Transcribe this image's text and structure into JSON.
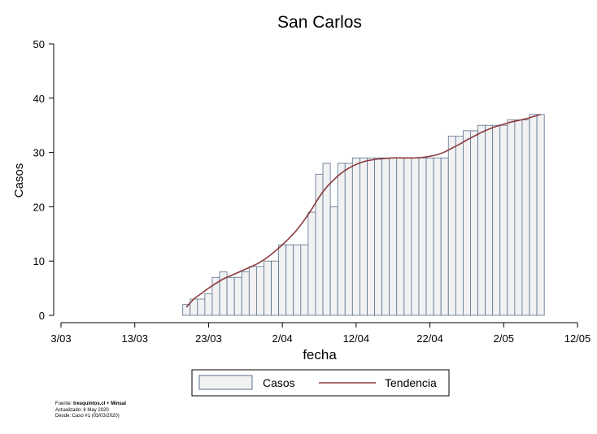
{
  "chart_data": {
    "type": "bar",
    "title": "San Carlos",
    "xlabel": "fecha",
    "ylabel": "Casos",
    "ylim": [
      0,
      50
    ],
    "yticks": [
      0,
      10,
      20,
      30,
      40,
      50
    ],
    "xlim_dates": [
      "2020-03-03",
      "2020-05-12"
    ],
    "xtick_labels": [
      "3/03",
      "13/03",
      "23/03",
      "2/04",
      "12/04",
      "22/04",
      "2/05",
      "12/05"
    ],
    "x_dates": [
      "2020-03-20",
      "2020-03-21",
      "2020-03-22",
      "2020-03-23",
      "2020-03-24",
      "2020-03-25",
      "2020-03-26",
      "2020-03-27",
      "2020-03-28",
      "2020-03-29",
      "2020-03-30",
      "2020-03-31",
      "2020-04-01",
      "2020-04-02",
      "2020-04-03",
      "2020-04-04",
      "2020-04-05",
      "2020-04-06",
      "2020-04-07",
      "2020-04-08",
      "2020-04-09",
      "2020-04-10",
      "2020-04-11",
      "2020-04-12",
      "2020-04-13",
      "2020-04-14",
      "2020-04-15",
      "2020-04-16",
      "2020-04-17",
      "2020-04-18",
      "2020-04-19",
      "2020-04-20",
      "2020-04-21",
      "2020-04-22",
      "2020-04-23",
      "2020-04-24",
      "2020-04-25",
      "2020-04-26",
      "2020-04-27",
      "2020-04-28",
      "2020-04-29",
      "2020-04-30",
      "2020-05-01",
      "2020-05-02",
      "2020-05-03",
      "2020-05-04",
      "2020-05-05",
      "2020-05-06",
      "2020-05-07"
    ],
    "series": [
      {
        "name": "Casos",
        "kind": "bar",
        "color": "#f2f2f2",
        "edge_color": "#5a6f8f",
        "values": [
          2,
          3,
          3,
          4,
          7,
          8,
          7,
          7,
          8,
          9,
          9,
          10,
          10,
          13,
          13,
          13,
          13,
          19,
          26,
          28,
          20,
          28,
          28,
          29,
          29,
          29,
          29,
          29,
          29,
          29,
          29,
          29,
          29,
          29,
          29,
          29,
          33,
          33,
          34,
          34,
          35,
          35,
          35,
          35,
          36,
          36,
          36,
          37,
          37
        ]
      },
      {
        "name": "Tendencia",
        "kind": "line",
        "color": "#8b3a3e",
        "values": [
          1.5,
          3.0,
          4.0,
          5.0,
          5.9,
          6.7,
          7.3,
          7.9,
          8.5,
          9.1,
          9.8,
          10.7,
          11.8,
          13.0,
          14.3,
          15.8,
          17.6,
          19.6,
          21.8,
          23.6,
          25.0,
          26.2,
          27.1,
          27.8,
          28.3,
          28.6,
          28.8,
          28.9,
          29.0,
          29.0,
          29.0,
          29.0,
          29.1,
          29.3,
          29.6,
          30.1,
          30.8,
          31.5,
          32.3,
          33.0,
          33.7,
          34.3,
          34.8,
          35.2,
          35.6,
          35.9,
          36.2,
          36.6,
          37.0
        ]
      }
    ],
    "legend_position": "bottom",
    "grid": false
  },
  "footer": {
    "source_prefix": "Fuente: ",
    "source_bold": "tresquintos.cl + Minsal",
    "updated": "Actualizado: 8 May 2020",
    "since": "Desde: Caso #1  (03/03/2020)"
  }
}
